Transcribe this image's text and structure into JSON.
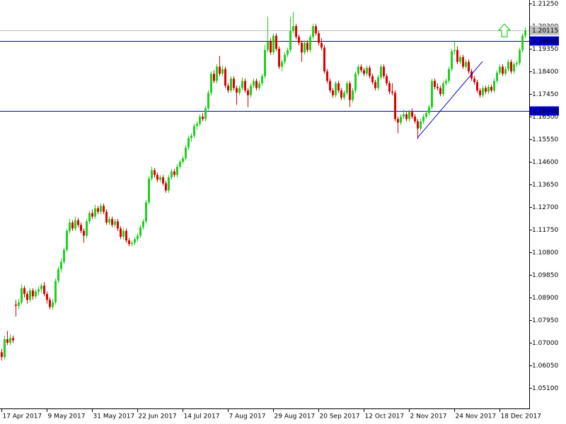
{
  "chart_data": {
    "type": "candlestick",
    "up_color": "#1fd01f",
    "down_color": "#e00000",
    "ylim": [
      1.0424,
      1.214
    ],
    "xlim": [
      -0.5,
      186.5
    ],
    "yticks": [
      {
        "value": 1.2125,
        "label": "1.21250"
      },
      {
        "value": 1.203,
        "label": "1.20300"
      },
      {
        "value": 1.1935,
        "label": "1.19350"
      },
      {
        "value": 1.184,
        "label": "1.18400"
      },
      {
        "value": 1.1745,
        "label": "1.17450"
      },
      {
        "value": 1.165,
        "label": "1.16500"
      },
      {
        "value": 1.1555,
        "label": "1.15550"
      },
      {
        "value": 1.146,
        "label": "1.14600"
      },
      {
        "value": 1.1365,
        "label": "1.13650"
      },
      {
        "value": 1.127,
        "label": "1.12700"
      },
      {
        "value": 1.1175,
        "label": "1.11750"
      },
      {
        "value": 1.108,
        "label": "1.10800"
      },
      {
        "value": 1.0985,
        "label": "1.09850"
      },
      {
        "value": 1.089,
        "label": "1.08900"
      },
      {
        "value": 1.0795,
        "label": "1.07950"
      },
      {
        "value": 1.07,
        "label": "1.07000"
      },
      {
        "value": 1.0605,
        "label": "1.06050"
      },
      {
        "value": 1.051,
        "label": "1.05100"
      }
    ],
    "xticks": [
      {
        "value": 0,
        "label": "17 Apr 2017"
      },
      {
        "value": 16,
        "label": "9 May 2017"
      },
      {
        "value": 32,
        "label": "31 May 2017"
      },
      {
        "value": 48,
        "label": "22 Jun 2017"
      },
      {
        "value": 64,
        "label": "14 Jul 2017"
      },
      {
        "value": 80,
        "label": "7 Aug 2017"
      },
      {
        "value": 96,
        "label": "29 Aug 2017"
      },
      {
        "value": 112,
        "label": "20 Sep 2017"
      },
      {
        "value": 128,
        "label": "12 Oct 2017"
      },
      {
        "value": 144,
        "label": "2 Nov 2017"
      },
      {
        "value": 160,
        "label": "24 Nov 2017"
      },
      {
        "value": 176,
        "label": "18 Dec 2017"
      }
    ],
    "current_price": 1.20115,
    "current_price_color": "#c0c0c0",
    "hlines": [
      {
        "value": 1.1968,
        "label": "1.19680"
      },
      {
        "value": 1.1674,
        "label": "1.16740"
      }
    ],
    "hline_color": "#0000cd",
    "trendline": {
      "x": [
        147,
        170
      ],
      "y": [
        1.1561,
        1.1882
      ],
      "color": "#0000cd"
    },
    "candles": [
      [
        1.066,
        1.0675,
        1.0625,
        1.064
      ],
      [
        1.064,
        1.073,
        1.063,
        1.0715
      ],
      [
        1.0715,
        1.075,
        1.069,
        1.07
      ],
      [
        1.07,
        1.0735,
        1.069,
        1.072
      ],
      [
        1.072,
        1.073,
        1.07,
        1.071
      ],
      [
        1.086,
        1.088,
        1.081,
        1.0855
      ],
      [
        1.0855,
        1.0885,
        1.084,
        1.087
      ],
      [
        1.087,
        1.0945,
        1.086,
        1.093
      ],
      [
        1.093,
        1.094,
        1.089,
        1.0905
      ],
      [
        1.0905,
        1.0915,
        1.0865,
        1.088
      ],
      [
        1.088,
        1.093,
        1.087,
        1.092
      ],
      [
        1.092,
        1.093,
        1.088,
        1.0895
      ],
      [
        1.0895,
        1.0925,
        1.0885,
        1.0915
      ],
      [
        1.0915,
        1.0935,
        1.09,
        1.0925
      ],
      [
        1.0925,
        1.095,
        1.091,
        1.094
      ],
      [
        1.094,
        1.0955,
        1.0895,
        1.0905
      ],
      [
        1.0905,
        1.0915,
        1.0865,
        1.088
      ],
      [
        1.088,
        1.089,
        1.084,
        1.085
      ],
      [
        1.085,
        1.0885,
        1.084,
        1.087
      ],
      [
        1.087,
        1.097,
        1.086,
        1.096
      ],
      [
        1.096,
        1.102,
        1.095,
        1.101
      ],
      [
        1.101,
        1.1055,
        1.0995,
        1.104
      ],
      [
        1.104,
        1.11,
        1.103,
        1.109
      ],
      [
        1.109,
        1.118,
        1.108,
        1.117
      ],
      [
        1.117,
        1.122,
        1.116,
        1.1205
      ],
      [
        1.1205,
        1.1215,
        1.117,
        1.118
      ],
      [
        1.118,
        1.123,
        1.117,
        1.1215
      ],
      [
        1.1215,
        1.1225,
        1.1185,
        1.1195
      ],
      [
        1.1195,
        1.1205,
        1.116,
        1.117
      ],
      [
        1.117,
        1.118,
        1.112,
        1.115
      ],
      [
        1.115,
        1.122,
        1.114,
        1.121
      ],
      [
        1.121,
        1.1255,
        1.12,
        1.1245
      ],
      [
        1.1245,
        1.126,
        1.122,
        1.123
      ],
      [
        1.123,
        1.128,
        1.122,
        1.1265
      ],
      [
        1.1265,
        1.1275,
        1.124,
        1.125
      ],
      [
        1.125,
        1.1285,
        1.124,
        1.1275
      ],
      [
        1.1275,
        1.1285,
        1.124,
        1.125
      ],
      [
        1.125,
        1.126,
        1.1195,
        1.1205
      ],
      [
        1.1205,
        1.123,
        1.1195,
        1.122
      ],
      [
        1.122,
        1.123,
        1.1185,
        1.1195
      ],
      [
        1.1195,
        1.122,
        1.1185,
        1.121
      ],
      [
        1.121,
        1.122,
        1.117,
        1.118
      ],
      [
        1.118,
        1.119,
        1.1135,
        1.1145
      ],
      [
        1.1145,
        1.118,
        1.1135,
        1.117
      ],
      [
        1.117,
        1.118,
        1.112,
        1.113
      ],
      [
        1.113,
        1.114,
        1.1105,
        1.1115
      ],
      [
        1.1115,
        1.113,
        1.1105,
        1.112
      ],
      [
        1.112,
        1.1145,
        1.111,
        1.1135
      ],
      [
        1.1135,
        1.116,
        1.1125,
        1.115
      ],
      [
        1.115,
        1.1195,
        1.114,
        1.1185
      ],
      [
        1.1185,
        1.122,
        1.1175,
        1.121
      ],
      [
        1.121,
        1.13,
        1.12,
        1.129
      ],
      [
        1.129,
        1.14,
        1.128,
        1.139
      ],
      [
        1.139,
        1.144,
        1.138,
        1.1425
      ],
      [
        1.1425,
        1.1435,
        1.1395,
        1.1405
      ],
      [
        1.1405,
        1.1415,
        1.1375,
        1.1385
      ],
      [
        1.1385,
        1.1405,
        1.1375,
        1.1395
      ],
      [
        1.1395,
        1.1405,
        1.136,
        1.137
      ],
      [
        1.137,
        1.138,
        1.133,
        1.134
      ],
      [
        1.134,
        1.1405,
        1.133,
        1.1395
      ],
      [
        1.1395,
        1.143,
        1.1385,
        1.142
      ],
      [
        1.142,
        1.143,
        1.1395,
        1.1405
      ],
      [
        1.1405,
        1.145,
        1.1395,
        1.144
      ],
      [
        1.144,
        1.147,
        1.143,
        1.146
      ],
      [
        1.146,
        1.1485,
        1.145,
        1.1475
      ],
      [
        1.1475,
        1.153,
        1.1465,
        1.152
      ],
      [
        1.152,
        1.157,
        1.151,
        1.156
      ],
      [
        1.156,
        1.158,
        1.1545,
        1.157
      ],
      [
        1.157,
        1.162,
        1.156,
        1.161
      ],
      [
        1.161,
        1.163,
        1.1595,
        1.162
      ],
      [
        1.162,
        1.166,
        1.161,
        1.165
      ],
      [
        1.165,
        1.1665,
        1.163,
        1.164
      ],
      [
        1.164,
        1.1695,
        1.163,
        1.1685
      ],
      [
        1.1685,
        1.176,
        1.1675,
        1.175
      ],
      [
        1.175,
        1.184,
        1.174,
        1.183
      ],
      [
        1.183,
        1.1845,
        1.179,
        1.18
      ],
      [
        1.18,
        1.187,
        1.179,
        1.186
      ],
      [
        1.186,
        1.1905,
        1.182,
        1.183
      ],
      [
        1.183,
        1.1865,
        1.182,
        1.185
      ],
      [
        1.185,
        1.186,
        1.177,
        1.178
      ],
      [
        1.178,
        1.179,
        1.175,
        1.176
      ],
      [
        1.176,
        1.182,
        1.175,
        1.181
      ],
      [
        1.181,
        1.182,
        1.176,
        1.177
      ],
      [
        1.177,
        1.178,
        1.17,
        1.175
      ],
      [
        1.175,
        1.178,
        1.174,
        1.177
      ],
      [
        1.177,
        1.1815,
        1.176,
        1.18
      ],
      [
        1.18,
        1.181,
        1.175,
        1.176
      ],
      [
        1.176,
        1.177,
        1.169,
        1.174
      ],
      [
        1.174,
        1.179,
        1.173,
        1.178
      ],
      [
        1.178,
        1.181,
        1.177,
        1.18
      ],
      [
        1.18,
        1.181,
        1.176,
        1.177
      ],
      [
        1.177,
        1.18,
        1.176,
        1.179
      ],
      [
        1.179,
        1.183,
        1.178,
        1.182
      ],
      [
        1.182,
        1.195,
        1.181,
        1.193
      ],
      [
        1.193,
        1.207,
        1.192,
        1.1965
      ],
      [
        1.1965,
        1.198,
        1.191,
        1.192
      ],
      [
        1.192,
        1.2,
        1.191,
        1.199
      ],
      [
        1.199,
        1.2,
        1.1925,
        1.1935
      ],
      [
        1.1935,
        1.1945,
        1.185,
        1.186
      ],
      [
        1.186,
        1.189,
        1.184,
        1.188
      ],
      [
        1.188,
        1.192,
        1.187,
        1.191
      ],
      [
        1.191,
        1.194,
        1.19,
        1.193
      ],
      [
        1.193,
        1.207,
        1.192,
        1.201
      ],
      [
        1.201,
        1.209,
        1.2,
        1.203
      ],
      [
        1.203,
        1.204,
        1.1975,
        1.1985
      ],
      [
        1.1985,
        1.1995,
        1.195,
        1.196
      ],
      [
        1.196,
        1.197,
        1.188,
        1.192
      ],
      [
        1.192,
        1.197,
        1.191,
        1.196
      ],
      [
        1.196,
        1.197,
        1.192,
        1.193
      ],
      [
        1.193,
        1.1995,
        1.192,
        1.1985
      ],
      [
        1.1985,
        1.204,
        1.1975,
        1.203
      ],
      [
        1.203,
        1.204,
        1.199,
        1.2
      ],
      [
        1.2,
        1.201,
        1.195,
        1.196
      ],
      [
        1.196,
        1.198,
        1.193,
        1.194
      ],
      [
        1.194,
        1.195,
        1.183,
        1.184
      ],
      [
        1.184,
        1.185,
        1.179,
        1.18
      ],
      [
        1.18,
        1.181,
        1.175,
        1.176
      ],
      [
        1.176,
        1.177,
        1.173,
        1.174
      ],
      [
        1.174,
        1.18,
        1.173,
        1.179
      ],
      [
        1.179,
        1.18,
        1.175,
        1.176
      ],
      [
        1.176,
        1.177,
        1.172,
        1.173
      ],
      [
        1.173,
        1.176,
        1.172,
        1.175
      ],
      [
        1.175,
        1.18,
        1.174,
        1.179
      ],
      [
        1.179,
        1.18,
        1.169,
        1.172
      ],
      [
        1.172,
        1.177,
        1.171,
        1.176
      ],
      [
        1.176,
        1.184,
        1.175,
        1.183
      ],
      [
        1.183,
        1.187,
        1.182,
        1.186
      ],
      [
        1.186,
        1.187,
        1.1835,
        1.1845
      ],
      [
        1.1845,
        1.1855,
        1.182,
        1.183
      ],
      [
        1.183,
        1.1865,
        1.182,
        1.1855
      ],
      [
        1.1855,
        1.1865,
        1.181,
        1.182
      ],
      [
        1.182,
        1.183,
        1.1785,
        1.1795
      ],
      [
        1.1795,
        1.1805,
        1.176,
        1.177
      ],
      [
        1.177,
        1.1825,
        1.176,
        1.1815
      ],
      [
        1.1815,
        1.187,
        1.1805,
        1.186
      ],
      [
        1.186,
        1.187,
        1.181,
        1.182
      ],
      [
        1.182,
        1.183,
        1.178,
        1.179
      ],
      [
        1.179,
        1.18,
        1.1745,
        1.1755
      ],
      [
        1.1755,
        1.179,
        1.174,
        1.175
      ],
      [
        1.175,
        1.176,
        1.163,
        1.164
      ],
      [
        1.164,
        1.165,
        1.158,
        1.1625
      ],
      [
        1.1625,
        1.166,
        1.1615,
        1.165
      ],
      [
        1.165,
        1.168,
        1.164,
        1.166
      ],
      [
        1.166,
        1.167,
        1.163,
        1.164
      ],
      [
        1.164,
        1.168,
        1.163,
        1.167
      ],
      [
        1.167,
        1.1685,
        1.164,
        1.165
      ],
      [
        1.165,
        1.166,
        1.162,
        1.163
      ],
      [
        1.163,
        1.164,
        1.1555,
        1.16
      ],
      [
        1.16,
        1.164,
        1.159,
        1.163
      ],
      [
        1.163,
        1.166,
        1.162,
        1.165
      ],
      [
        1.165,
        1.1675,
        1.164,
        1.1665
      ],
      [
        1.1665,
        1.17,
        1.1655,
        1.169
      ],
      [
        1.169,
        1.181,
        1.168,
        1.18
      ],
      [
        1.18,
        1.181,
        1.1765,
        1.1775
      ],
      [
        1.1775,
        1.179,
        1.176,
        1.177
      ],
      [
        1.177,
        1.178,
        1.1735,
        1.1745
      ],
      [
        1.1745,
        1.18,
        1.1735,
        1.179
      ],
      [
        1.179,
        1.181,
        1.178,
        1.18
      ],
      [
        1.18,
        1.186,
        1.179,
        1.185
      ],
      [
        1.185,
        1.1935,
        1.184,
        1.1925
      ],
      [
        1.1925,
        1.1965,
        1.191,
        1.193
      ],
      [
        1.193,
        1.1945,
        1.187,
        1.188
      ],
      [
        1.188,
        1.191,
        1.187,
        1.19
      ],
      [
        1.19,
        1.191,
        1.185,
        1.186
      ],
      [
        1.186,
        1.189,
        1.185,
        1.188
      ],
      [
        1.188,
        1.189,
        1.183,
        1.184
      ],
      [
        1.184,
        1.185,
        1.18,
        1.181
      ],
      [
        1.181,
        1.182,
        1.1785,
        1.1795
      ],
      [
        1.1795,
        1.1805,
        1.175,
        1.176
      ],
      [
        1.176,
        1.177,
        1.173,
        1.174
      ],
      [
        1.174,
        1.178,
        1.173,
        1.177
      ],
      [
        1.177,
        1.178,
        1.1745,
        1.1755
      ],
      [
        1.1755,
        1.1785,
        1.1745,
        1.1775
      ],
      [
        1.1775,
        1.1785,
        1.175,
        1.176
      ],
      [
        1.176,
        1.181,
        1.175,
        1.18
      ],
      [
        1.18,
        1.1845,
        1.179,
        1.1835
      ],
      [
        1.1835,
        1.187,
        1.1825,
        1.186
      ],
      [
        1.186,
        1.187,
        1.182,
        1.183
      ],
      [
        1.183,
        1.186,
        1.182,
        1.185
      ],
      [
        1.185,
        1.189,
        1.184,
        1.188
      ],
      [
        1.188,
        1.189,
        1.183,
        1.184
      ],
      [
        1.184,
        1.188,
        1.183,
        1.187
      ],
      [
        1.187,
        1.1885,
        1.186,
        1.1875
      ],
      [
        1.1875,
        1.194,
        1.1865,
        1.193
      ],
      [
        1.193,
        1.2,
        1.192,
        1.199
      ],
      [
        1.199,
        1.2025,
        1.198,
        1.20115
      ]
    ]
  }
}
